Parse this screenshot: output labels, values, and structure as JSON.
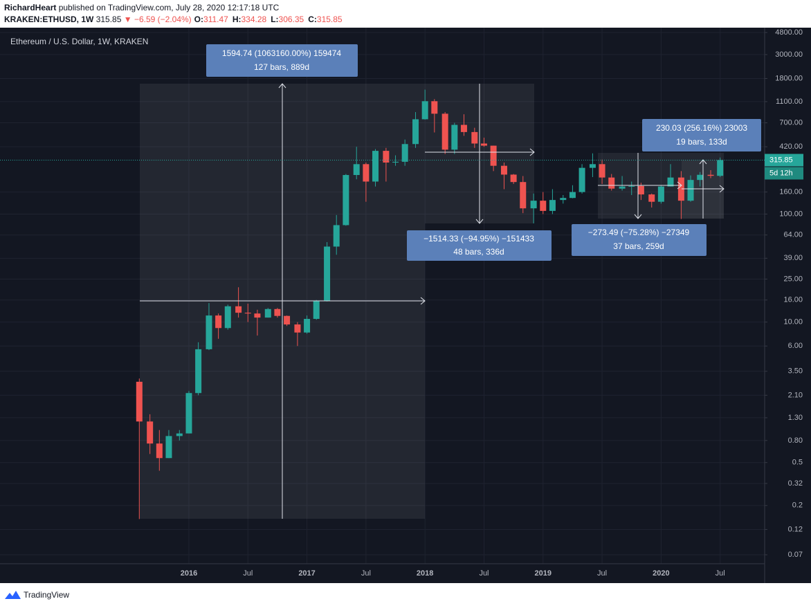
{
  "header": {
    "author": "RichardHeart",
    "published": "published on TradingView.com, July 28, 2020 12:17:18 UTC",
    "symbol": "KRAKEN:ETHUSD, 1W",
    "last": "315.85",
    "change": "▼ −6.59 (−2.04%)",
    "ohlc": [
      {
        "label": "O:",
        "value": "311.47"
      },
      {
        "label": "H:",
        "value": "334.28"
      },
      {
        "label": "L:",
        "value": "306.35"
      },
      {
        "label": "C:",
        "value": "315.85"
      }
    ]
  },
  "footer": {
    "brand": "TradingView"
  },
  "chart_data": {
    "type": "candlestick",
    "title": "Ethereum / U.S. Dollar, 1W, KRAKEN",
    "up_color": "#26a69a",
    "down_color": "#ef5350",
    "log_scale": true,
    "grid": true,
    "xlim": [
      2014.4,
      2020.877
    ],
    "ylim": [
      0.0578,
      5323
    ],
    "xticks": [
      {
        "value": 2016,
        "label": "2016"
      },
      {
        "value": 2016.5,
        "label": "Jul"
      },
      {
        "value": 2017,
        "label": "2017"
      },
      {
        "value": 2017.5,
        "label": "Jul"
      },
      {
        "value": 2018,
        "label": "2018"
      },
      {
        "value": 2018.5,
        "label": "Jul"
      },
      {
        "value": 2019,
        "label": "2019"
      },
      {
        "value": 2019.5,
        "label": "Jul"
      },
      {
        "value": 2020,
        "label": "2020"
      },
      {
        "value": 2020.5,
        "label": "Jul"
      }
    ],
    "yticks": [
      {
        "value": 4800,
        "label": "4800.00"
      },
      {
        "value": 3000,
        "label": "3000.00"
      },
      {
        "value": 1800,
        "label": "1800.00"
      },
      {
        "value": 1100,
        "label": "1100.00"
      },
      {
        "value": 700,
        "label": "700.00"
      },
      {
        "value": 420,
        "label": "420.00"
      },
      {
        "value": 160,
        "label": "160.00"
      },
      {
        "value": 100,
        "label": "100.00"
      },
      {
        "value": 64,
        "label": "64.00"
      },
      {
        "value": 39,
        "label": "39.00"
      },
      {
        "value": 25,
        "label": "25.00"
      },
      {
        "value": 16,
        "label": "16.00"
      },
      {
        "value": 10,
        "label": "10.00"
      },
      {
        "value": 6,
        "label": "6.00"
      },
      {
        "value": 3.5,
        "label": "3.50"
      },
      {
        "value": 2.1,
        "label": "2.10"
      },
      {
        "value": 1.3,
        "label": "1.30"
      },
      {
        "value": 0.8,
        "label": "0.80"
      },
      0.5,
      0.32,
      0.2,
      0.12,
      0.07
    ],
    "last_price": 315.85,
    "countdown": "5d 12h",
    "x": [
      2015.58,
      2015.67,
      2015.75,
      2015.83,
      2015.92,
      2016.0,
      2016.08,
      2016.17,
      2016.25,
      2016.33,
      2016.42,
      2016.5,
      2016.58,
      2016.67,
      2016.75,
      2016.83,
      2016.92,
      2017.0,
      2017.08,
      2017.17,
      2017.25,
      2017.33,
      2017.42,
      2017.5,
      2017.58,
      2017.67,
      2017.75,
      2017.83,
      2017.92,
      2018.0,
      2018.08,
      2018.17,
      2018.25,
      2018.33,
      2018.42,
      2018.5,
      2018.58,
      2018.67,
      2018.75,
      2018.83,
      2018.92,
      2019.0,
      2019.08,
      2019.17,
      2019.25,
      2019.33,
      2019.42,
      2019.5,
      2019.58,
      2019.67,
      2019.75,
      2019.83,
      2019.92,
      2020.0,
      2020.08,
      2020.17,
      2020.25,
      2020.33,
      2020.42,
      2020.5
    ],
    "open": [
      2.8,
      1.2,
      0.75,
      0.55,
      0.88,
      0.93,
      2.2,
      5.6,
      11.5,
      8.8,
      14,
      12.2,
      12,
      11,
      13.2,
      11.4,
      9.5,
      8.0,
      10.7,
      15.6,
      50,
      79,
      230,
      290,
      200,
      385,
      300,
      305,
      445,
      755,
      1110,
      850,
      395,
      670,
      575,
      450,
      430,
      280,
      232,
      198,
      113,
      133,
      107,
      135,
      141,
      160,
      268,
      290,
      218,
      172,
      180,
      182,
      152,
      130,
      180,
      218,
      133,
      207,
      231,
      226
    ],
    "high": [
      3.0,
      1.4,
      1.0,
      1.0,
      1.0,
      2.3,
      6.5,
      15,
      12,
      14.5,
      21,
      14.8,
      13,
      13.5,
      13.5,
      11.5,
      10,
      11.5,
      16,
      55,
      98,
      235,
      420,
      300,
      400,
      410,
      350,
      490,
      880,
      1420,
      1160,
      880,
      700,
      840,
      630,
      510,
      430,
      300,
      235,
      225,
      155,
      160,
      170,
      150,
      185,
      290,
      365,
      320,
      235,
      225,
      200,
      195,
      155,
      185,
      290,
      250,
      228,
      245,
      255,
      334
    ],
    "low": [
      0.15,
      0.6,
      0.42,
      0.55,
      0.8,
      0.93,
      2.1,
      5.5,
      7,
      8.5,
      11,
      10,
      7.5,
      11,
      11,
      9.2,
      6,
      7.8,
      10.5,
      15.5,
      42,
      78,
      210,
      130,
      180,
      200,
      280,
      280,
      410,
      750,
      570,
      360,
      360,
      530,
      410,
      420,
      250,
      170,
      190,
      102,
      82,
      100,
      100,
      125,
      140,
      155,
      220,
      190,
      165,
      165,
      150,
      135,
      115,
      125,
      180,
      90,
      130,
      180,
      215,
      220
    ],
    "close": [
      1.2,
      0.75,
      0.55,
      0.88,
      0.93,
      2.2,
      5.6,
      11.5,
      8.8,
      14,
      12.2,
      12,
      11,
      13.2,
      11.4,
      9.5,
      8.0,
      10.7,
      15.6,
      50,
      79,
      230,
      290,
      200,
      385,
      300,
      305,
      445,
      755,
      1110,
      850,
      395,
      670,
      575,
      450,
      430,
      280,
      232,
      198,
      113,
      133,
      107,
      135,
      141,
      160,
      268,
      290,
      218,
      172,
      180,
      182,
      152,
      130,
      180,
      218,
      133,
      207,
      231,
      226,
      316
    ],
    "annotations": [
      {
        "line1": "1594.74 (1063160.00%) 159474",
        "line2": "127 bars, 889d"
      },
      {
        "line1": "−1514.33 (−94.95%) −151433",
        "line2": "48 bars, 336d"
      },
      {
        "line1": "−273.49 (−75.28%) −27349",
        "line2": "37 bars, 259d"
      },
      {
        "line1": "230.03 (256.16%) 23003",
        "line2": "19 bars, 133d"
      }
    ]
  }
}
